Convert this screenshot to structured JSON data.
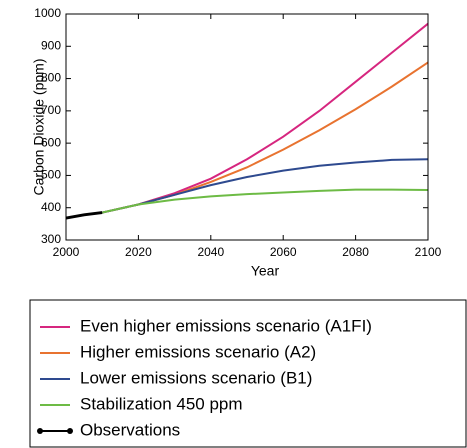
{
  "chart_data": {
    "type": "line",
    "xlabel": "Year",
    "ylabel": "Carbon Dioxide (ppm)",
    "x": [
      2000,
      2005,
      2010,
      2020,
      2030,
      2040,
      2050,
      2060,
      2070,
      2080,
      2090,
      2100
    ],
    "series": [
      {
        "name": "Even higher emissions scenario (A1FI)",
        "color": "#d6267f",
        "values": [
          null,
          null,
          385,
          410,
          445,
          490,
          550,
          620,
          700,
          790,
          880,
          970
        ]
      },
      {
        "name": "Higher emissions scenario (A2)",
        "color": "#e87330",
        "values": [
          null,
          null,
          385,
          410,
          440,
          480,
          525,
          580,
          640,
          705,
          775,
          850
        ]
      },
      {
        "name": "Lower emissions scenario (B1)",
        "color": "#2e4a8f",
        "values": [
          null,
          null,
          385,
          410,
          440,
          470,
          495,
          515,
          530,
          540,
          548,
          550
        ]
      },
      {
        "name": "Stabilization 450 ppm",
        "color": "#6dbb45",
        "values": [
          null,
          null,
          385,
          410,
          425,
          435,
          442,
          447,
          452,
          456,
          456,
          455
        ]
      },
      {
        "name": "Observations",
        "color": "#000000",
        "values": [
          368,
          378,
          385,
          null,
          null,
          null,
          null,
          null,
          null,
          null,
          null,
          null
        ]
      }
    ],
    "xlim": [
      2000,
      2100
    ],
    "xticks": [
      2000,
      2020,
      2040,
      2060,
      2080,
      2100
    ],
    "ylim": [
      300,
      1000
    ],
    "yticks": [
      300,
      400,
      500,
      600,
      700,
      800,
      900,
      1000
    ]
  }
}
